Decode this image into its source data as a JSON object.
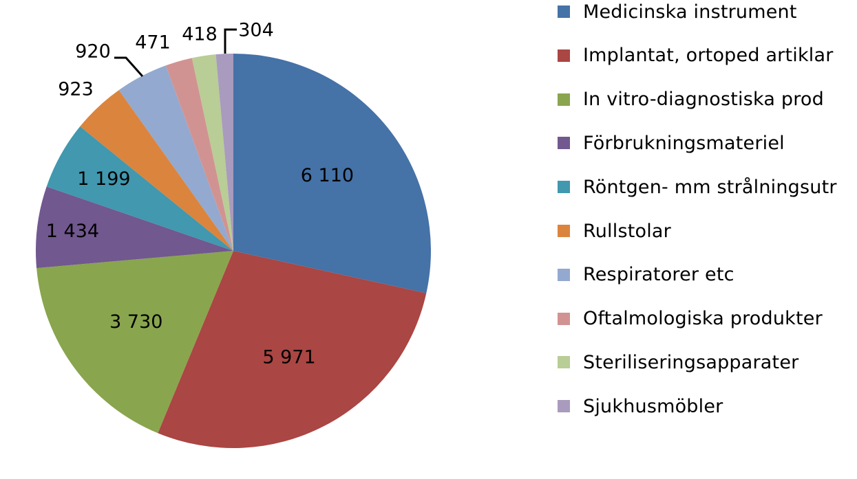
{
  "chart_data": {
    "type": "pie",
    "categories": [
      "Medicinska instrument",
      "Implantat, ortoped artiklar",
      "In vitro-diagnostiska prod",
      "Förbrukningsmateriel",
      "Röntgen- mm strålningsutr",
      "Rullstolar",
      "Respiratorer etc",
      "Oftalmologiska produkter",
      "Steriliseringsapparater",
      "Sjukhusmöbler"
    ],
    "values": [
      6110,
      5971,
      3730,
      1434,
      1199,
      923,
      920,
      471,
      418,
      304
    ],
    "data_labels": [
      "6 110",
      "5 971",
      "3 730",
      "1 434",
      "1 199",
      "923",
      "920",
      "471",
      "418",
      "304"
    ],
    "colors": [
      "#4572A7",
      "#AA4643",
      "#89A54E",
      "#71588F",
      "#4198AF",
      "#DB843D",
      "#93A9CF",
      "#D19392",
      "#B9CD96",
      "#A99BBD"
    ],
    "legend_position": "right",
    "start_angle": "12 o'clock",
    "direction": "clockwise"
  }
}
